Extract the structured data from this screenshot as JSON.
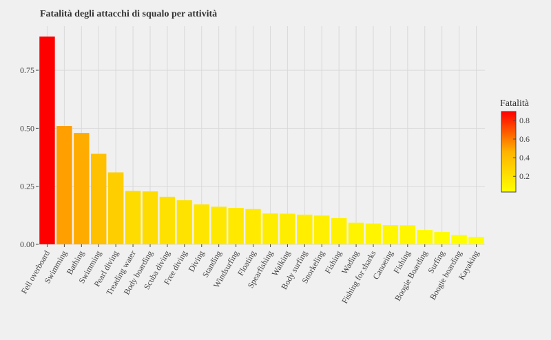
{
  "chart_data": {
    "type": "bar",
    "title": "Fatalità degli attacchi di squalo per attività",
    "xlabel": "",
    "ylabel": "",
    "ylim": [
      0,
      0.94
    ],
    "yticks": [
      0,
      0.25,
      0.5,
      0.75
    ],
    "ytick_labels": [
      "0.00",
      "0.25",
      "0.50",
      "0.75"
    ],
    "grid": true,
    "categories": [
      "Fell overboard",
      "Swimming",
      "Bathing",
      "Swimming",
      "Pearl diving",
      "Treading water",
      "Body boarding",
      "Scuba diving",
      "Free diving",
      "Diving",
      "Standing",
      "Windsurfing",
      "Floating",
      "Spearfishing",
      "Walking",
      "Body surfing",
      "Snorkeling",
      "Fishing",
      "Wading",
      "Fishing for sharks",
      "Canoeing",
      "Fishing",
      "Boogie Boarding",
      "Surfing",
      "Boogie boarding",
      "Kayaking"
    ],
    "values": [
      0.895,
      0.51,
      0.48,
      0.39,
      0.31,
      0.23,
      0.228,
      0.205,
      0.19,
      0.172,
      0.162,
      0.157,
      0.152,
      0.133,
      0.132,
      0.128,
      0.124,
      0.113,
      0.093,
      0.09,
      0.083,
      0.082,
      0.062,
      0.053,
      0.04,
      0.032
    ],
    "legend": {
      "title": "Fatalità",
      "placement": "right",
      "ticks": [
        0.2,
        0.4,
        0.6,
        0.8
      ],
      "tick_labels": [
        "0.2",
        "0.4",
        "0.6",
        "0.8"
      ],
      "range": [
        0.032,
        0.895
      ]
    },
    "colors": {
      "low": "#ffff00",
      "high": "#ff0000",
      "axis": "#444444",
      "grid": "#d9d9d9",
      "background": "#f0f0f0"
    }
  }
}
